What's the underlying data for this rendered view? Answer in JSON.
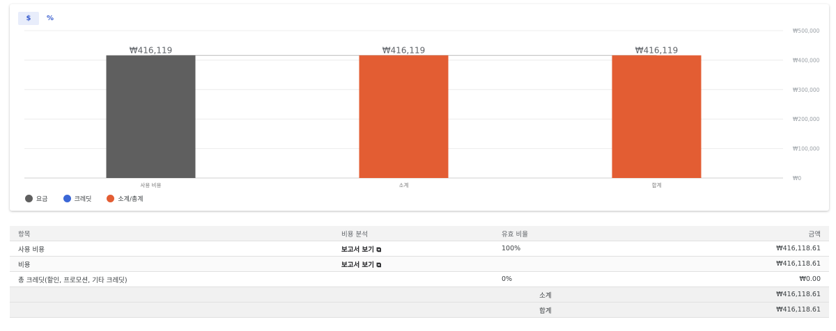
{
  "toggles": {
    "dollar": "$",
    "percent": "%"
  },
  "chart_data": {
    "type": "bar",
    "categories": [
      "사용 비용",
      "소계",
      "합계"
    ],
    "values": [
      416119,
      416119,
      416119
    ],
    "data_labels": [
      "₩416,119",
      "₩416,119",
      "₩416,119"
    ],
    "bar_colors": [
      "#5f5f5f",
      "#e35d33",
      "#e35d33"
    ],
    "ylim": [
      0,
      500000
    ],
    "yticks": [
      0,
      100000,
      200000,
      300000,
      400000,
      500000
    ],
    "ytick_labels": [
      "₩0",
      "₩100,000",
      "₩200,000",
      "₩300,000",
      "₩400,000",
      "₩500,000"
    ],
    "grid": true,
    "legend_position": "bottom-left",
    "legend": [
      {
        "label": "요금",
        "color": "#5f5f5f"
      },
      {
        "label": "크레딧",
        "color": "#3b67d6"
      },
      {
        "label": "소계/총계",
        "color": "#e35d33"
      }
    ]
  },
  "table": {
    "headers": [
      "항목",
      "비용 분석",
      "유효 비율",
      "금액"
    ],
    "rows": [
      {
        "item": "사용 비용",
        "analysis": "보고서 보기",
        "rate": "100%",
        "amount": "₩416,118.61"
      },
      {
        "item": "비용",
        "analysis": "보고서 보기",
        "rate": "",
        "amount": "₩416,118.61"
      },
      {
        "item": "총 크레딧(할인, 프로모션, 기타 크레딧)",
        "analysis": "",
        "rate": "0%",
        "amount": "₩0.00"
      }
    ],
    "subtotal": {
      "label": "소계",
      "amount": "₩416,118.61"
    },
    "total": {
      "label": "합계",
      "amount": "₩416,118.61"
    }
  }
}
